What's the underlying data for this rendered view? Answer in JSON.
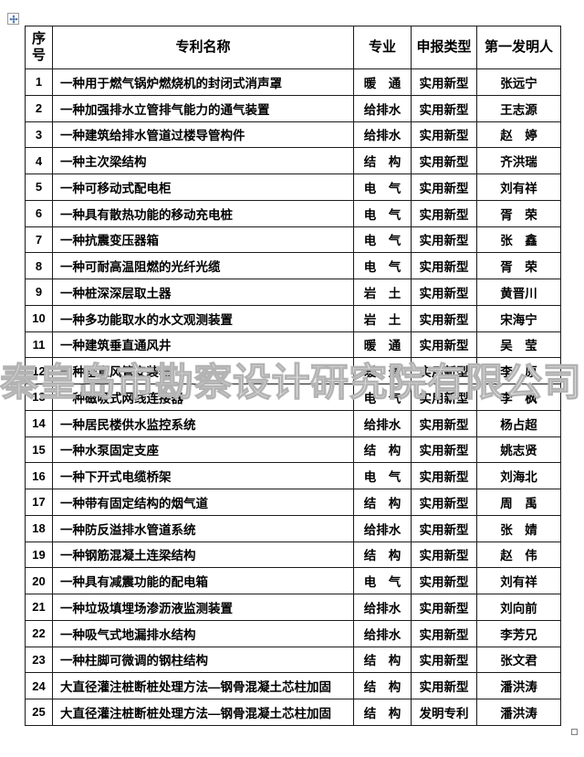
{
  "colors": {
    "table_border": "#1c1c1c",
    "watermark_stroke": "#b3b3b3",
    "move_handle_arrow": "#2e5fa3"
  },
  "watermark": {
    "text": "秦皇岛市勘察设计研究院有限公司"
  },
  "table": {
    "headers": {
      "serial": "序号",
      "name": "专利名称",
      "specialty": "专业",
      "type": "申报类型",
      "inventor": "第一发明人"
    },
    "rows": [
      {
        "no": "1",
        "name": "一种用于燃气锅炉燃烧机的封闭式消声罩",
        "specialty": "暖　通",
        "type": "实用新型",
        "inventor": "张远宁"
      },
      {
        "no": "2",
        "name": "一种加强排水立管排气能力的通气装置",
        "specialty": "给排水",
        "type": "实用新型",
        "inventor": "王志源"
      },
      {
        "no": "3",
        "name": "一种建筑给排水管道过楼导管构件",
        "specialty": "给排水",
        "type": "实用新型",
        "inventor": "赵　婷"
      },
      {
        "no": "4",
        "name": "一种主次梁结构",
        "specialty": "结　构",
        "type": "实用新型",
        "inventor": "齐洪瑞"
      },
      {
        "no": "5",
        "name": "一种可移动式配电柜",
        "specialty": "电　气",
        "type": "实用新型",
        "inventor": "刘有祥"
      },
      {
        "no": "6",
        "name": "一种具有散热功能的移动充电桩",
        "specialty": "电　气",
        "type": "实用新型",
        "inventor": "胥　荣"
      },
      {
        "no": "7",
        "name": "一种抗震变压器箱",
        "specialty": "电　气",
        "type": "实用新型",
        "inventor": "张　鑫"
      },
      {
        "no": "8",
        "name": "一种可耐高温阻燃的光纤光缆",
        "specialty": "电　气",
        "type": "实用新型",
        "inventor": "胥　荣"
      },
      {
        "no": "9",
        "name": "一种桩深深层取土器",
        "specialty": "岩　土",
        "type": "实用新型",
        "inventor": "黄晋川"
      },
      {
        "no": "10",
        "name": "一种多功能取水的水文观测装置",
        "specialty": "岩　土",
        "type": "实用新型",
        "inventor": "宋海宁"
      },
      {
        "no": "11",
        "name": "一种建筑垂直通风井",
        "specialty": "暖　通",
        "type": "实用新型",
        "inventor": "吴　莹"
      },
      {
        "no": "12",
        "name": "一种垂直风管安装器",
        "specialty": "暖　通",
        "type": "实用新型",
        "inventor": "李　原"
      },
      {
        "no": "13",
        "name": "一种磁吸式网线连接器",
        "specialty": "电　气",
        "type": "实用新型",
        "inventor": "李　枫"
      },
      {
        "no": "14",
        "name": "一种居民楼供水监控系统",
        "specialty": "给排水",
        "type": "实用新型",
        "inventor": "杨占超"
      },
      {
        "no": "15",
        "name": "一种水泵固定支座",
        "specialty": "结　构",
        "type": "实用新型",
        "inventor": "姚志贤"
      },
      {
        "no": "16",
        "name": "一种下开式电缆桥架",
        "specialty": "电　气",
        "type": "实用新型",
        "inventor": "刘海北"
      },
      {
        "no": "17",
        "name": "一种带有固定结构的烟气道",
        "specialty": "结　构",
        "type": "实用新型",
        "inventor": "周　禹"
      },
      {
        "no": "18",
        "name": "一种防反溢排水管道系统",
        "specialty": "给排水",
        "type": "实用新型",
        "inventor": "张　婧"
      },
      {
        "no": "19",
        "name": "一种钢筋混凝土连梁结构",
        "specialty": "结　构",
        "type": "实用新型",
        "inventor": "赵　伟"
      },
      {
        "no": "20",
        "name": "一种具有减震功能的配电箱",
        "specialty": "电　气",
        "type": "实用新型",
        "inventor": "刘有祥"
      },
      {
        "no": "21",
        "name": "一种垃圾填埋场渗沥液监测装置",
        "specialty": "给排水",
        "type": "实用新型",
        "inventor": "刘向前"
      },
      {
        "no": "22",
        "name": "一种吸气式地漏排水结构",
        "specialty": "给排水",
        "type": "实用新型",
        "inventor": "李芳兄"
      },
      {
        "no": "23",
        "name": "一种柱脚可微调的钢柱结构",
        "specialty": "结　构",
        "type": "实用新型",
        "inventor": "张文君"
      },
      {
        "no": "24",
        "name": "大直径灌注桩断桩处理方法—钢骨混凝土芯柱加固",
        "specialty": "结　构",
        "type": "实用新型",
        "inventor": "潘洪涛"
      },
      {
        "no": "25",
        "name": "大直径灌注桩断桩处理方法—钢骨混凝土芯柱加固",
        "specialty": "结　构",
        "type": "发明专利",
        "inventor": "潘洪涛"
      }
    ]
  }
}
